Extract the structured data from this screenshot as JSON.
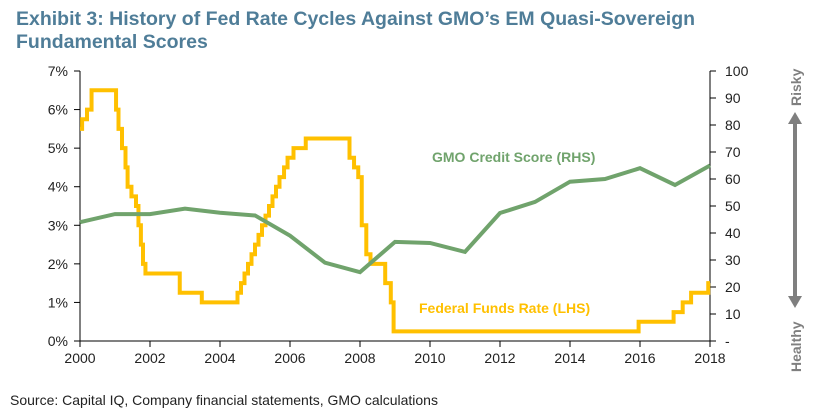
{
  "chart_data": {
    "type": "line",
    "title": "Exhibit 3: History of Fed Rate Cycles Against GMO’s EM Quasi-Sovereign Fundamental Scores",
    "source": "Source: Capital IQ, Company financial statements, GMO calculations",
    "x_axis": {
      "range": [
        2000,
        2018
      ],
      "ticks": [
        "2000",
        "2002",
        "2004",
        "2006",
        "2008",
        "2010",
        "2012",
        "2014",
        "2016",
        "2018"
      ]
    },
    "y_left": {
      "range": [
        0,
        7
      ],
      "unit": "%",
      "ticks": [
        "0%",
        "1%",
        "2%",
        "3%",
        "4%",
        "5%",
        "6%",
        "7%"
      ]
    },
    "y_right": {
      "range": [
        0,
        100
      ],
      "ticks": [
        "-",
        "10",
        "20",
        "30",
        "40",
        "50",
        "60",
        "70",
        "80",
        "90",
        "100"
      ],
      "top_label": "Risky",
      "bottom_label": "Healthy",
      "arrow_color": "#7f7f7f"
    },
    "grid": false,
    "series": [
      {
        "name": "Federal Funds Rate (LHS)",
        "axis": "left",
        "color": "#ffc000",
        "style": "step",
        "points": [
          [
            2000.0,
            5.5
          ],
          [
            2000.06,
            5.75
          ],
          [
            2000.2,
            6.0
          ],
          [
            2000.33,
            6.5
          ],
          [
            2001.03,
            6.0
          ],
          [
            2001.1,
            5.5
          ],
          [
            2001.2,
            5.0
          ],
          [
            2001.3,
            4.5
          ],
          [
            2001.36,
            4.0
          ],
          [
            2001.47,
            3.75
          ],
          [
            2001.6,
            3.5
          ],
          [
            2001.67,
            3.0
          ],
          [
            2001.74,
            2.5
          ],
          [
            2001.8,
            2.0
          ],
          [
            2001.87,
            1.75
          ],
          [
            2002.85,
            1.25
          ],
          [
            2003.48,
            1.0
          ],
          [
            2004.5,
            1.25
          ],
          [
            2004.6,
            1.5
          ],
          [
            2004.7,
            1.75
          ],
          [
            2004.8,
            2.0
          ],
          [
            2004.9,
            2.25
          ],
          [
            2005.0,
            2.5
          ],
          [
            2005.1,
            2.75
          ],
          [
            2005.2,
            3.0
          ],
          [
            2005.3,
            3.25
          ],
          [
            2005.4,
            3.5
          ],
          [
            2005.5,
            3.75
          ],
          [
            2005.6,
            4.0
          ],
          [
            2005.7,
            4.25
          ],
          [
            2005.83,
            4.5
          ],
          [
            2005.93,
            4.75
          ],
          [
            2006.1,
            5.0
          ],
          [
            2006.45,
            5.25
          ],
          [
            2007.7,
            4.75
          ],
          [
            2007.83,
            4.5
          ],
          [
            2007.95,
            4.25
          ],
          [
            2008.05,
            3.0
          ],
          [
            2008.18,
            2.25
          ],
          [
            2008.3,
            2.0
          ],
          [
            2008.72,
            1.5
          ],
          [
            2008.88,
            1.0
          ],
          [
            2008.96,
            0.25
          ],
          [
            2015.96,
            0.5
          ],
          [
            2016.96,
            0.75
          ],
          [
            2017.22,
            1.0
          ],
          [
            2017.46,
            1.25
          ],
          [
            2017.95,
            1.5
          ],
          [
            2018.0,
            1.5
          ]
        ]
      },
      {
        "name": "GMO Credit Score (RHS)",
        "axis": "right",
        "color": "#70a36c",
        "style": "line",
        "points": [
          [
            2000,
            44
          ],
          [
            2001,
            47
          ],
          [
            2002,
            47
          ],
          [
            2003,
            49
          ],
          [
            2004,
            47.5
          ],
          [
            2005,
            46.5
          ],
          [
            2006,
            39
          ],
          [
            2007,
            29
          ],
          [
            2008,
            25.5
          ],
          [
            2009,
            36.7
          ],
          [
            2010,
            36.3
          ],
          [
            2011,
            33
          ],
          [
            2012,
            47.4
          ],
          [
            2013,
            51.5
          ],
          [
            2014,
            59
          ],
          [
            2015,
            60
          ],
          [
            2016,
            64
          ],
          [
            2017,
            57.8
          ],
          [
            2018,
            65
          ]
        ]
      }
    ]
  }
}
